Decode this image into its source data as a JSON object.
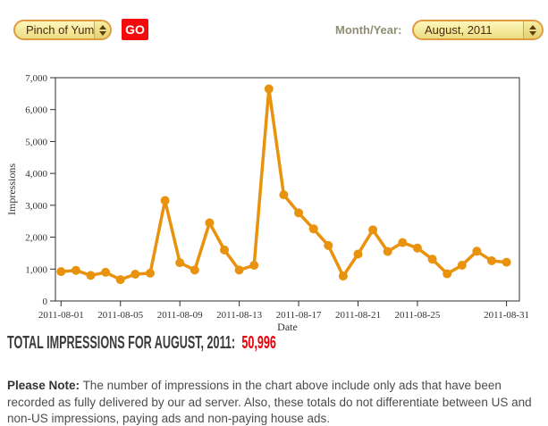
{
  "toolbar": {
    "site_select": {
      "value": "Pinch of Yum"
    },
    "go_label": "GO",
    "month_year_label": "Month/Year:",
    "month_select": {
      "value": "August, 2011"
    }
  },
  "chart_data": {
    "type": "line",
    "title": "",
    "xlabel": "Date",
    "ylabel": "Impressions",
    "line_color": "#E8920D",
    "axis_color": "#2f2f2f",
    "tick_text_color": "#333333",
    "grid": false,
    "legend": "none",
    "ylim": [
      0,
      7000
    ],
    "x": [
      "2011-08-01",
      "2011-08-02",
      "2011-08-03",
      "2011-08-04",
      "2011-08-05",
      "2011-08-06",
      "2011-08-07",
      "2011-08-08",
      "2011-08-09",
      "2011-08-10",
      "2011-08-11",
      "2011-08-12",
      "2011-08-13",
      "2011-08-14",
      "2011-08-15",
      "2011-08-16",
      "2011-08-17",
      "2011-08-18",
      "2011-08-19",
      "2011-08-20",
      "2011-08-21",
      "2011-08-22",
      "2011-08-23",
      "2011-08-24",
      "2011-08-25",
      "2011-08-26",
      "2011-08-27",
      "2011-08-28",
      "2011-08-29",
      "2011-08-30",
      "2011-08-31"
    ],
    "values": [
      920,
      960,
      800,
      900,
      670,
      840,
      870,
      3150,
      1200,
      970,
      2450,
      1600,
      970,
      1120,
      6650,
      3330,
      2760,
      2260,
      1740,
      780,
      1470,
      2230,
      1550,
      1830,
      1660,
      1310,
      850,
      1120,
      1560,
      1260,
      1216
    ],
    "values_total": 50996,
    "y_ticks": [
      {
        "value": 0,
        "label": "0"
      },
      {
        "value": 1000,
        "label": "1,000"
      },
      {
        "value": 2000,
        "label": "2,000"
      },
      {
        "value": 3000,
        "label": "3,000"
      },
      {
        "value": 4000,
        "label": "4,000"
      },
      {
        "value": 5000,
        "label": "5,000"
      },
      {
        "value": 6000,
        "label": "6,000"
      },
      {
        "value": 7000,
        "label": "7,000"
      }
    ],
    "x_ticks": [
      {
        "index": 0,
        "label": "2011-08-01"
      },
      {
        "index": 4,
        "label": "2011-08-05"
      },
      {
        "index": 8,
        "label": "2011-08-09"
      },
      {
        "index": 12,
        "label": "2011-08-13"
      },
      {
        "index": 16,
        "label": "2011-08-17"
      },
      {
        "index": 20,
        "label": "2011-08-21"
      },
      {
        "index": 24,
        "label": "2011-08-25"
      },
      {
        "index": 30,
        "label": "2011-08-31"
      }
    ]
  },
  "summary": {
    "label": "TOTAL IMPRESSIONS FOR AUGUST, 2011:",
    "value": "50,996"
  },
  "note": {
    "label": "Please Note:",
    "body": "The number of impressions in the chart above include only ads that have been recorded as fully delivered by our ad server. Also, these totals do not differentiate between US and non-US impressions, paying ads and non-paying house ads."
  }
}
